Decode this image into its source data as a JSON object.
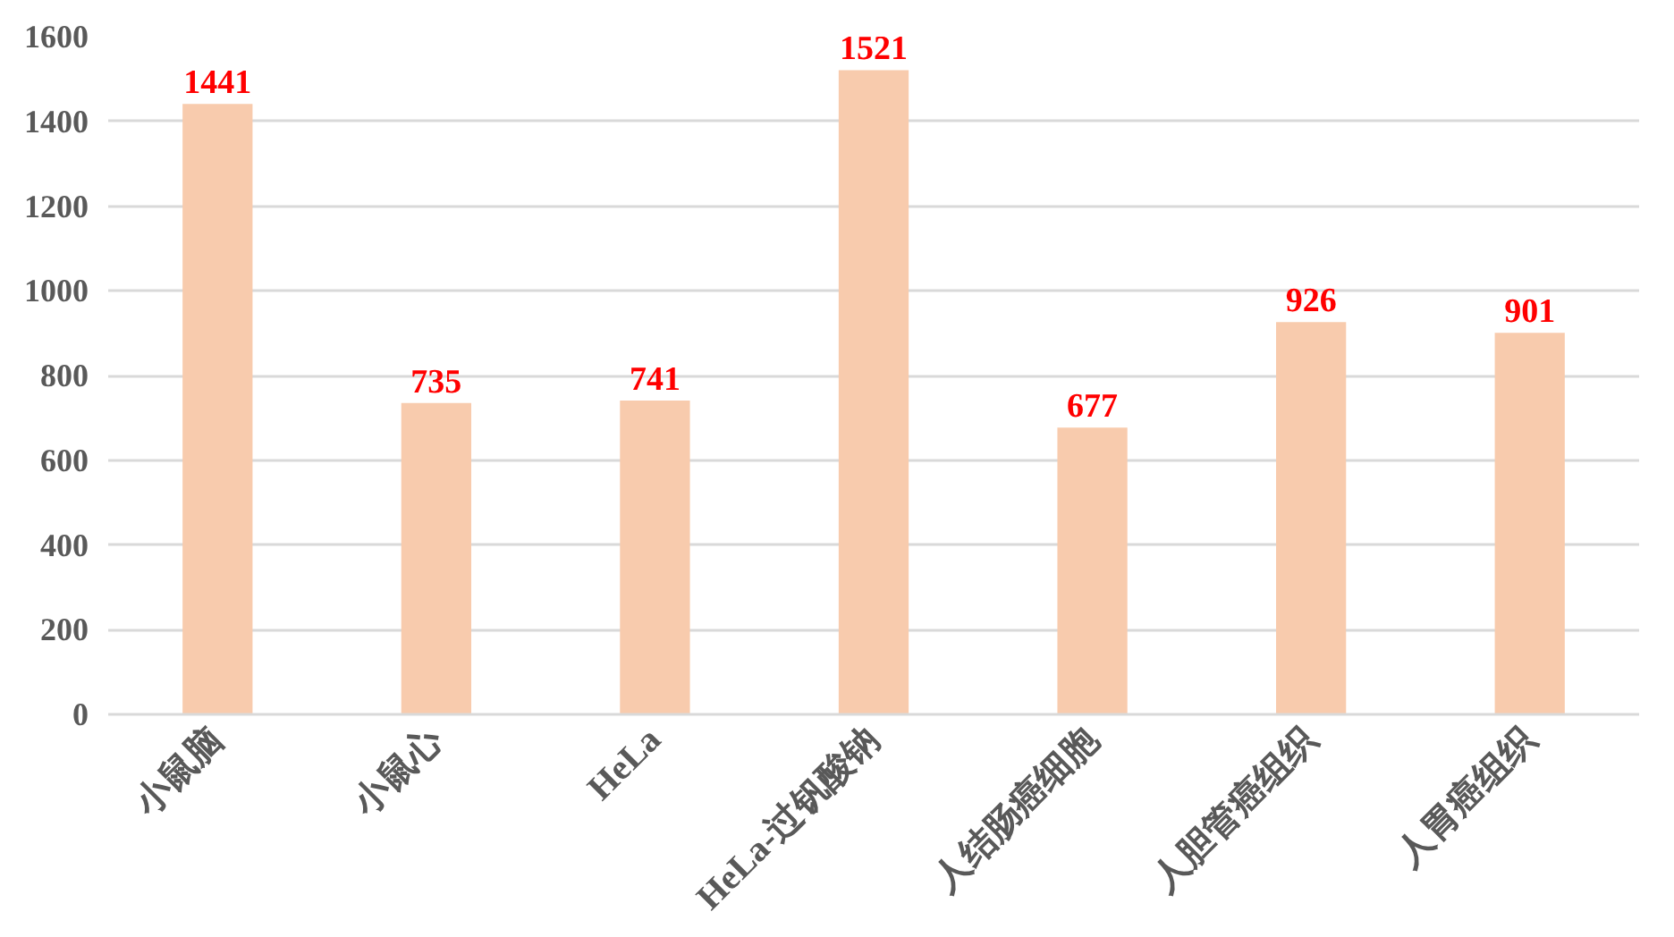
{
  "chart_data": {
    "type": "bar",
    "categories": [
      "小鼠脑",
      "小鼠心",
      "HeLa",
      "HeLa-过钒酸钠",
      "人结肠癌细胞",
      "人胆管癌组织",
      "人胃癌组织"
    ],
    "values": [
      1441,
      735,
      741,
      1521,
      677,
      926,
      901
    ],
    "color": "#f8cbad",
    "ylim": [
      0,
      1600
    ],
    "yticks": [
      0,
      200,
      400,
      600,
      800,
      1000,
      1200,
      1400,
      1600
    ],
    "grid": "y",
    "data_labels": true
  }
}
